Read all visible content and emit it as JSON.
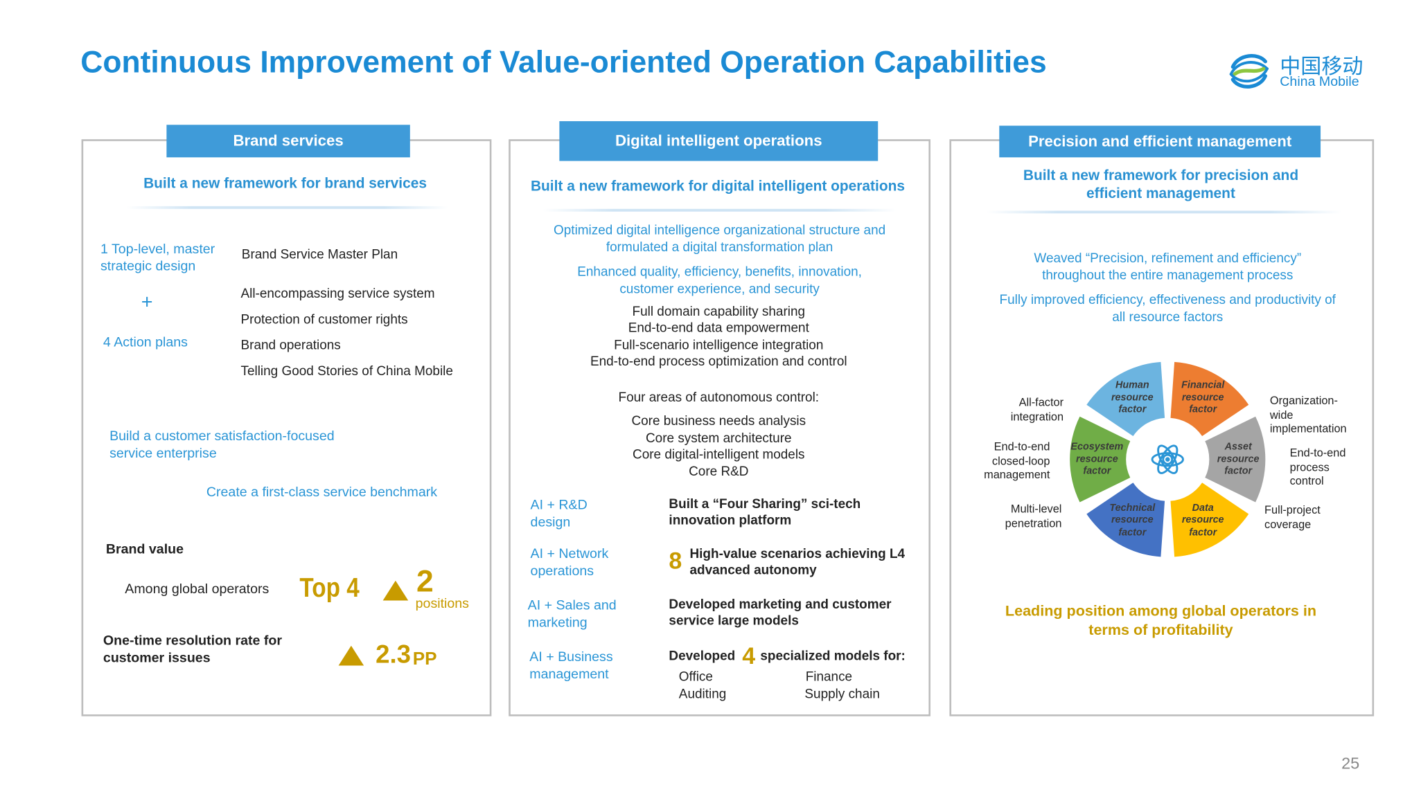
{
  "title": "Continuous Improvement of Value-oriented Operation Capabilities",
  "logo": {
    "cn": "中国移动",
    "en": "China Mobile"
  },
  "page_number": "25",
  "colors": {
    "accent": "#1a8ad4",
    "header": "#3f9bd9",
    "gold": "#c89b00"
  },
  "brand": {
    "header": "Brand services",
    "subtitle": "Built a new framework for brand services",
    "top_level": "1 Top-level, master strategic design",
    "master_plan": "Brand Service Master Plan",
    "plus": "+",
    "action_plans": "4 Action plans",
    "actions": [
      "All-encompassing service system",
      "Protection of customer rights",
      "Brand operations",
      "Telling Good Stories of China Mobile"
    ],
    "satisfaction": "Build a customer satisfaction-focused service enterprise",
    "benchmark": "Create a first-class service benchmark",
    "brand_value": "Brand value",
    "among": "Among global operators",
    "top4": "Top 4",
    "up_num": "2",
    "positions": "positions",
    "resolution": "One-time resolution rate for customer issues",
    "pp_value": "2.3",
    "pp": "PP"
  },
  "digital": {
    "header": "Digital intelligent operations",
    "subtitle": "Built a new framework for digital intelligent operations",
    "blue1": "Optimized digital intelligence organizational structure and formulated a digital transformation plan",
    "blue2": "Enhanced quality, efficiency, benefits, innovation, customer experience, and security",
    "list1": [
      "Full domain capability sharing",
      "End-to-end data empowerment",
      "Full-scenario intelligence integration",
      "End-to-end process optimization and control"
    ],
    "four_areas": "Four areas of autonomous control:",
    "list2": [
      "Core business needs analysis",
      "Core system architecture",
      "Core digital-intelligent models",
      "Core R&D"
    ],
    "rows": [
      {
        "label": "AI + R&D design",
        "text": "Built a “Four Sharing” sci-tech innovation platform"
      },
      {
        "label": "AI + Network operations",
        "num": "8",
        "text": "High-value scenarios achieving L4 advanced autonomy"
      },
      {
        "label": "AI + Sales and marketing",
        "text": "Developed marketing and customer service large models"
      },
      {
        "label": "AI + Business management",
        "pre": "Developed",
        "num": "4",
        "text": "specialized models for:"
      }
    ],
    "models": [
      "Office",
      "Finance",
      "Auditing",
      "Supply chain"
    ]
  },
  "precision": {
    "header": "Precision and efficient management",
    "subtitle": "Built a new framework for precision and efficient management",
    "blue1": "Weaved “Precision, refinement and efficiency” throughout the entire management process",
    "blue2": "Fully improved efficiency, effectiveness and productivity of all resource factors",
    "segments": [
      {
        "label": "Human resource factor",
        "color": "#6cb4e0"
      },
      {
        "label": "Financial resource factor",
        "color": "#ed7d31"
      },
      {
        "label": "Asset resource factor",
        "color": "#a5a5a5"
      },
      {
        "label": "Data resource factor",
        "color": "#ffc000"
      },
      {
        "label": "Technical resource factor",
        "color": "#4472c4"
      },
      {
        "label": "Ecosystem resource factor",
        "color": "#70ad47"
      }
    ],
    "left_labels": [
      "All-factor integration",
      "End-to-end closed-loop management",
      "Multi-level penetration"
    ],
    "right_labels": [
      "Organization-wide implementation",
      "End-to-end process control",
      "Full-project coverage"
    ],
    "leading": "Leading position among global operators in terms of profitability"
  }
}
